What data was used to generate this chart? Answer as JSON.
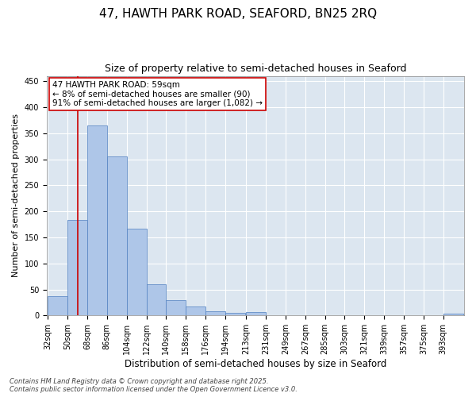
{
  "title_line1": "47, HAWTH PARK ROAD, SEAFORD, BN25 2RQ",
  "title_line2": "Size of property relative to semi-detached houses in Seaford",
  "xlabel": "Distribution of semi-detached houses by size in Seaford",
  "ylabel": "Number of semi-detached properties",
  "bin_labels": [
    "32sqm",
    "50sqm",
    "68sqm",
    "86sqm",
    "104sqm",
    "122sqm",
    "140sqm",
    "158sqm",
    "176sqm",
    "194sqm",
    "213sqm",
    "231sqm",
    "249sqm",
    "267sqm",
    "285sqm",
    "303sqm",
    "321sqm",
    "339sqm",
    "357sqm",
    "375sqm",
    "393sqm"
  ],
  "bin_edges": [
    32,
    50,
    68,
    86,
    104,
    122,
    140,
    158,
    176,
    194,
    213,
    231,
    249,
    267,
    285,
    303,
    321,
    339,
    357,
    375,
    393
  ],
  "bar_heights": [
    37,
    183,
    365,
    305,
    167,
    60,
    30,
    17,
    8,
    5,
    6,
    1,
    1,
    0,
    0,
    0,
    0,
    0,
    0,
    0,
    3
  ],
  "bar_color": "#aec6e8",
  "bar_edge_color": "#5080c0",
  "property_size": 59,
  "property_line_color": "#cc0000",
  "annotation_text": "47 HAWTH PARK ROAD: 59sqm\n← 8% of semi-detached houses are smaller (90)\n91% of semi-detached houses are larger (1,082) →",
  "annotation_box_color": "#ffffff",
  "annotation_box_edge_color": "#cc0000",
  "ylim": [
    0,
    460
  ],
  "yticks": [
    0,
    50,
    100,
    150,
    200,
    250,
    300,
    350,
    400,
    450
  ],
  "background_color": "#dce6f0",
  "footer_line1": "Contains HM Land Registry data © Crown copyright and database right 2025.",
  "footer_line2": "Contains public sector information licensed under the Open Government Licence v3.0.",
  "title_fontsize": 11,
  "subtitle_fontsize": 9,
  "xlabel_fontsize": 8.5,
  "ylabel_fontsize": 8,
  "tick_fontsize": 7,
  "annotation_fontsize": 7.5,
  "footer_fontsize": 6
}
